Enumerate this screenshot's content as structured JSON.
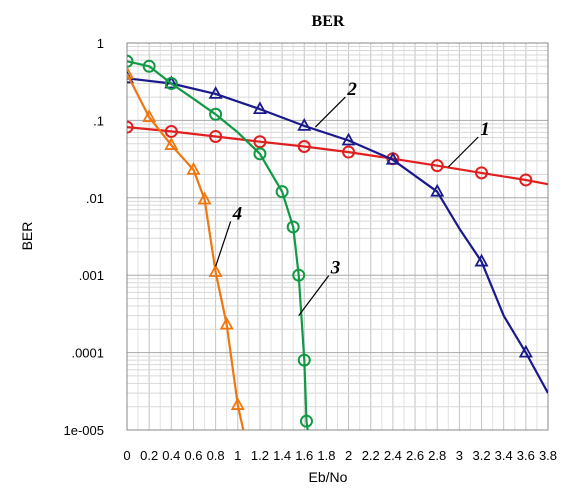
{
  "chart_data": {
    "type": "line",
    "title": "BER",
    "xlabel": "Eb/No",
    "ylabel": "BER",
    "xlim": [
      0,
      3.8
    ],
    "ylim": [
      1e-05,
      1
    ],
    "yscale": "log",
    "grid": true,
    "x_ticks": [
      "0",
      "0.2",
      "0.4",
      "0.6",
      "0.8",
      "1",
      "1.2",
      "1.4",
      "1.6",
      "1.8",
      "2",
      "2.2",
      "2.4",
      "2.6",
      "2.8",
      "3",
      "3.2",
      "3.4",
      "3.6",
      "3.8"
    ],
    "y_ticks": [
      {
        "value": 1,
        "label": "1"
      },
      {
        "value": 0.1,
        "label": ".1"
      },
      {
        "value": 0.01,
        "label": ".01"
      },
      {
        "value": 0.001,
        "label": ".001"
      },
      {
        "value": 0.0001,
        "label": ".0001"
      },
      {
        "value": 1e-05,
        "label": "1e-005"
      }
    ],
    "series": [
      {
        "label": "1",
        "color": "#e02020",
        "marker": "circle",
        "x": [
          0,
          0.4,
          0.8,
          1.2,
          1.6,
          2.0,
          2.4,
          2.8,
          3.2,
          3.6,
          3.8
        ],
        "y": [
          0.082,
          0.072,
          0.062,
          0.053,
          0.046,
          0.039,
          0.032,
          0.026,
          0.021,
          0.017,
          0.015
        ],
        "markers_x": [
          0,
          0.4,
          0.8,
          1.2,
          1.6,
          2.0,
          2.4,
          2.8,
          3.2,
          3.6
        ],
        "markers_y": [
          0.082,
          0.072,
          0.062,
          0.053,
          0.046,
          0.039,
          0.032,
          0.026,
          0.021,
          0.017
        ]
      },
      {
        "label": "2",
        "color": "#1a1a8c",
        "marker": "triangle",
        "x": [
          0,
          0.4,
          0.8,
          1.2,
          1.6,
          2.0,
          2.4,
          2.8,
          3.0,
          3.2,
          3.4,
          3.6,
          3.8
        ],
        "y": [
          0.35,
          0.3,
          0.22,
          0.14,
          0.085,
          0.055,
          0.031,
          0.012,
          0.004,
          0.0015,
          0.0003,
          0.0001,
          3e-05
        ],
        "markers_x": [
          0,
          0.4,
          0.8,
          1.2,
          1.6,
          2.0,
          2.4,
          2.8,
          3.2,
          3.6
        ],
        "markers_y": [
          0.35,
          0.3,
          0.22,
          0.14,
          0.085,
          0.055,
          0.031,
          0.012,
          0.0015,
          0.0001
        ]
      },
      {
        "label": "3",
        "color": "#119944",
        "marker": "circle",
        "x": [
          0,
          0.2,
          0.4,
          0.6,
          0.8,
          1.0,
          1.2,
          1.4,
          1.5,
          1.55,
          1.6,
          1.62,
          1.63
        ],
        "y": [
          0.58,
          0.5,
          0.3,
          0.19,
          0.12,
          0.07,
          0.037,
          0.012,
          0.0042,
          0.001,
          8e-05,
          1.3e-05,
          1e-05
        ],
        "markers_x": [
          0,
          0.2,
          0.4,
          0.8,
          1.2,
          1.4,
          1.5,
          1.55,
          1.6,
          1.62
        ],
        "markers_y": [
          0.58,
          0.5,
          0.3,
          0.12,
          0.037,
          0.012,
          0.0042,
          0.001,
          8e-05,
          1.3e-05
        ]
      },
      {
        "label": "4",
        "color": "#ee7711",
        "marker": "triangle",
        "x": [
          0,
          0.2,
          0.4,
          0.6,
          0.7,
          0.8,
          0.9,
          1.0,
          1.05
        ],
        "y": [
          0.4,
          0.11,
          0.048,
          0.023,
          0.0095,
          0.0011,
          0.00023,
          2.1e-05,
          1e-05
        ],
        "markers_x": [
          0,
          0.2,
          0.4,
          0.6,
          0.7,
          0.8,
          0.9,
          1.0
        ],
        "markers_y": [
          0.4,
          0.11,
          0.048,
          0.023,
          0.0095,
          0.0011,
          0.00023,
          2.1e-05
        ]
      }
    ]
  }
}
